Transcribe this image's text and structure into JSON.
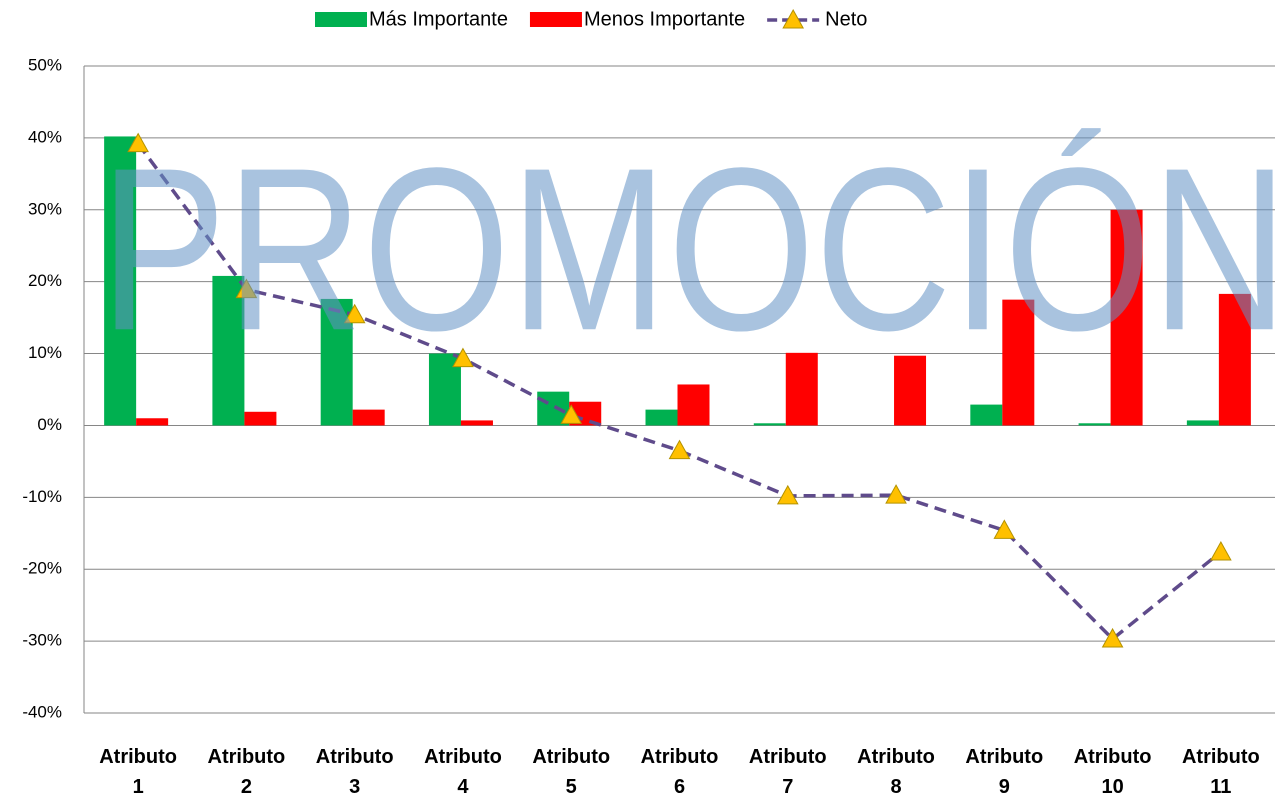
{
  "chart_data": {
    "type": "bar",
    "watermark": "PROMOCIÓN",
    "categories": [
      "Atributo 1",
      "Atributo 2",
      "Atributo 3",
      "Atributo 4",
      "Atributo 5",
      "Atributo 6",
      "Atributo 7",
      "Atributo 8",
      "Atributo 9",
      "Atributo 10",
      "Atributo 11"
    ],
    "series": [
      {
        "name": "Más Importante",
        "color": "#00b050",
        "type": "bar",
        "values": [
          40.2,
          20.8,
          17.6,
          10,
          4.7,
          2.2,
          0.3,
          0,
          2.9,
          0.3,
          0.7
        ]
      },
      {
        "name": "Menos Importante",
        "color": "#ff0000",
        "type": "bar",
        "values": [
          1.0,
          1.9,
          2.2,
          0.7,
          3.3,
          5.7,
          10.1,
          9.7,
          17.5,
          30,
          18.3
        ]
      },
      {
        "name": "Neto",
        "color": "#5f4b8b",
        "marker_color": "#ffc000",
        "type": "line",
        "values": [
          39.2,
          18.9,
          15.4,
          9.3,
          1.4,
          -3.5,
          -9.8,
          -9.7,
          -14.6,
          -29.7,
          -17.6
        ]
      }
    ],
    "ylim": [
      -40,
      50
    ],
    "yticks": [
      {
        "value": -40,
        "label": "-40%"
      },
      {
        "value": -30,
        "label": "-30%"
      },
      {
        "value": -20,
        "label": "-20%"
      },
      {
        "value": -10,
        "label": "-10%"
      },
      {
        "value": 0,
        "label": "0%"
      },
      {
        "value": 10,
        "label": "10%"
      },
      {
        "value": 20,
        "label": "20%"
      },
      {
        "value": 30,
        "label": "30%"
      },
      {
        "value": 40,
        "label": "40%"
      },
      {
        "value": 50,
        "label": "50%"
      }
    ],
    "grid": true,
    "legend": "top"
  }
}
